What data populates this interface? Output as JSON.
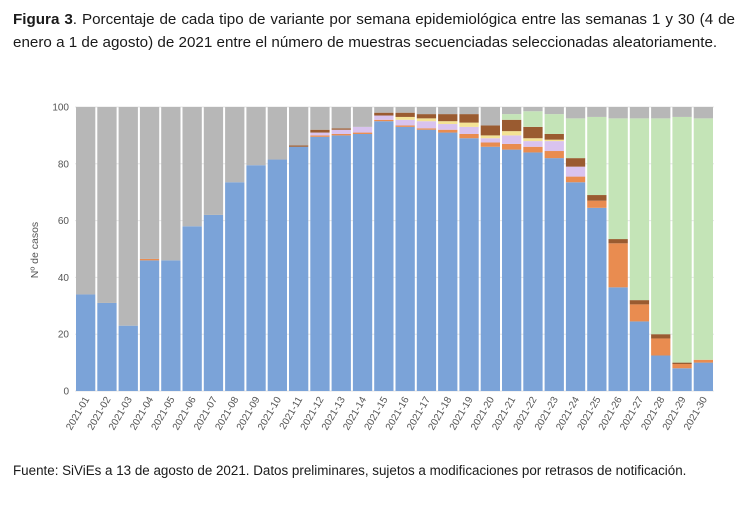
{
  "caption": {
    "label": "Figura 3",
    "text": ". Porcentaje de cada tipo de variante por semana epidemiológica entre las semanas 1 y 30 (4 de enero a 1 de agosto) de 2021 entre el número de muestras secuenciadas seleccionadas aleatoriamente."
  },
  "footer": {
    "text": "Fuente: SiViEs a 13 de agosto de 2021. Datos preliminares, sujetos a modificaciones por retrasos de notificación."
  },
  "colors": {
    "blue": "#7ba3d8",
    "orange": "#e98c50",
    "lavender": "#d9c3ef",
    "yellow": "#f4e395",
    "brown": "#9a5b30",
    "green": "#c4e4b7",
    "grey": "#b7b7b7"
  },
  "chart_data": {
    "type": "bar",
    "stacked": true,
    "title": "",
    "xlabel": "",
    "ylabel": "Nº de casos",
    "ylim": [
      0,
      100
    ],
    "yticks": [
      0,
      20,
      40,
      60,
      80,
      100
    ],
    "categories": [
      "2021-01",
      "2021-02",
      "2021-03",
      "2021-04",
      "2021-05",
      "2021-06",
      "2021-07",
      "2021-08",
      "2021-09",
      "2021-10",
      "2021-11",
      "2021-12",
      "2021-13",
      "2021-14",
      "2021-15",
      "2021-16",
      "2021-17",
      "2021-18",
      "2021-19",
      "2021-20",
      "2021-21",
      "2021-22",
      "2021-23",
      "2021-24",
      "2021-25",
      "2021-26",
      "2021-27",
      "2021-28",
      "2021-29",
      "2021-30"
    ],
    "series": [
      {
        "name": "blue",
        "color": "blue",
        "values": [
          34,
          31,
          23,
          46,
          46,
          58,
          62,
          73.5,
          79.5,
          81.5,
          86,
          89.5,
          90,
          90.5,
          95,
          93,
          92,
          91,
          89,
          86,
          85,
          84,
          82,
          73.5,
          64.5,
          36.5,
          24.5,
          12.5,
          8,
          10
        ]
      },
      {
        "name": "orange",
        "color": "orange",
        "values": [
          0,
          0,
          0,
          0.5,
          0,
          0,
          0,
          0,
          0,
          0,
          0,
          0.5,
          0.5,
          0.5,
          0.5,
          0.5,
          0.5,
          1,
          1.5,
          1.5,
          2,
          2,
          2.5,
          2,
          2.5,
          15.5,
          6,
          6,
          1.5,
          1
        ]
      },
      {
        "name": "lavender",
        "color": "lavender",
        "values": [
          0,
          0,
          0,
          0,
          0,
          0,
          0,
          0,
          0,
          0,
          0,
          1,
          1.5,
          2,
          1.5,
          2,
          2.5,
          2,
          2.5,
          1.5,
          3,
          2,
          3.5,
          3.5,
          0,
          0,
          0,
          0,
          0,
          0
        ]
      },
      {
        "name": "yellow",
        "color": "yellow",
        "values": [
          0,
          0,
          0,
          0,
          0,
          0,
          0,
          0,
          0,
          0,
          0,
          0,
          0,
          0,
          0,
          1,
          1,
          1,
          1.5,
          1,
          1.5,
          1,
          0.5,
          0,
          0,
          0,
          0,
          0,
          0,
          0
        ]
      },
      {
        "name": "brown",
        "color": "brown",
        "values": [
          0,
          0,
          0,
          0,
          0,
          0,
          0,
          0,
          0,
          0,
          0.5,
          1,
          0.5,
          0,
          1,
          1.5,
          1.5,
          2.5,
          3,
          3.5,
          4,
          4,
          2,
          3,
          2,
          1.5,
          1.5,
          1.5,
          0.5,
          0
        ]
      },
      {
        "name": "green",
        "color": "green",
        "values": [
          0,
          0,
          0,
          0,
          0,
          0,
          0,
          0,
          0,
          0,
          0,
          0,
          0,
          0,
          0,
          0,
          0,
          0,
          0,
          0,
          2,
          5.5,
          7,
          14,
          27.5,
          42.5,
          64,
          76,
          86.5,
          85
        ]
      },
      {
        "name": "grey",
        "color": "grey",
        "values": [
          66,
          69,
          77,
          53.5,
          54,
          42,
          38,
          26.5,
          20.5,
          18.5,
          13.5,
          8,
          7.5,
          7,
          2,
          2,
          2.5,
          2.5,
          2.5,
          6.5,
          2.5,
          1.5,
          2.5,
          4,
          3.5,
          4,
          4,
          4,
          3.5,
          4
        ]
      }
    ]
  }
}
